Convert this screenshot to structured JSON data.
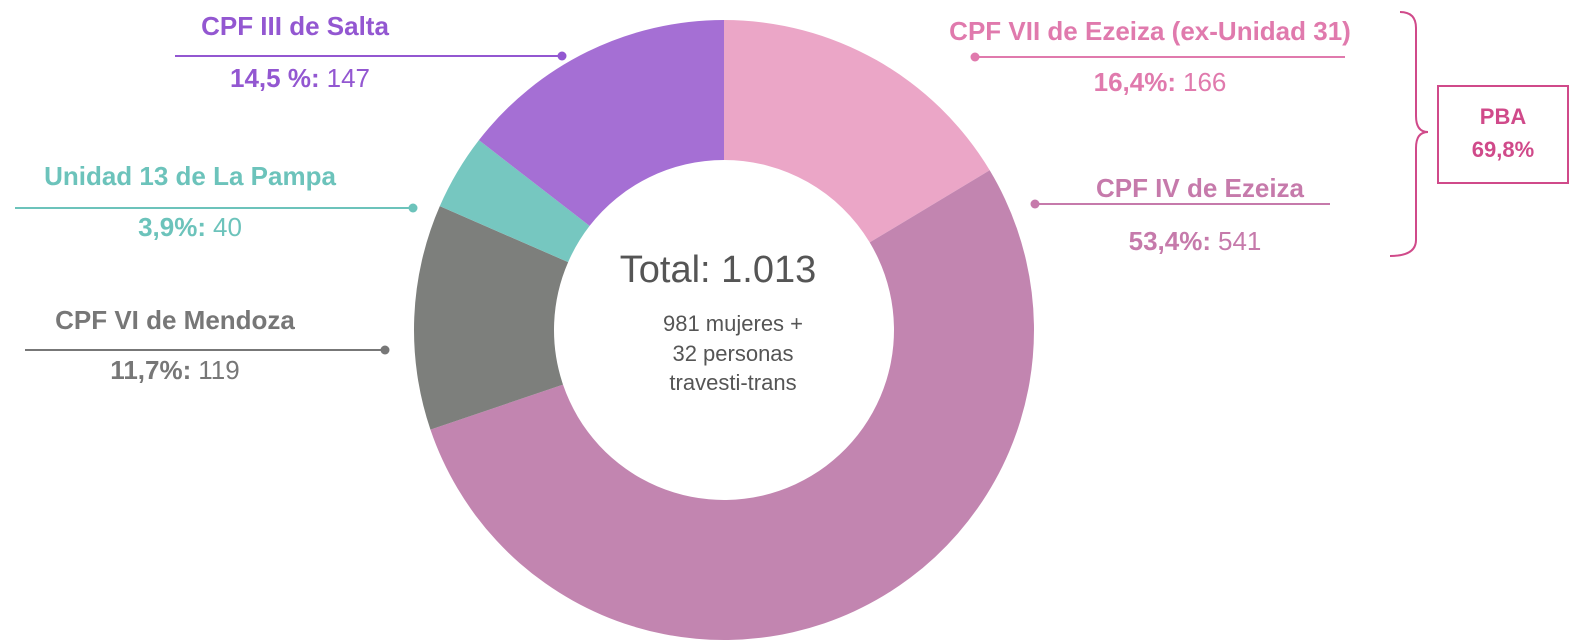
{
  "chart_data": {
    "type": "donut",
    "categories": [
      "CPF VII de Ezeiza (ex-Unidad 31)",
      "CPF IV de Ezeiza",
      "CPF VI de Mendoza",
      "Unidad 13 de La Pampa",
      "CPF III de Salta"
    ],
    "values": [
      166,
      541,
      119,
      40,
      147
    ],
    "percent_labels": [
      "16,4%:",
      "53,4%:",
      "11,7%:",
      "3,9%:",
      "14,5 %:"
    ],
    "colors": [
      "#eba6c7",
      "#c285b0",
      "#7d7f7c",
      "#76c7c0",
      "#a56fd4"
    ],
    "label_colors": [
      "#e07aad",
      "#c67aab",
      "#777777",
      "#6cc3bb",
      "#9357d1"
    ],
    "center_title": "Total: 1.013",
    "center_lines": [
      "981 mujeres +",
      "32 personas",
      "travesti-trans"
    ],
    "group_annotation": {
      "label": "PBA",
      "value_label": "69,8%"
    }
  }
}
